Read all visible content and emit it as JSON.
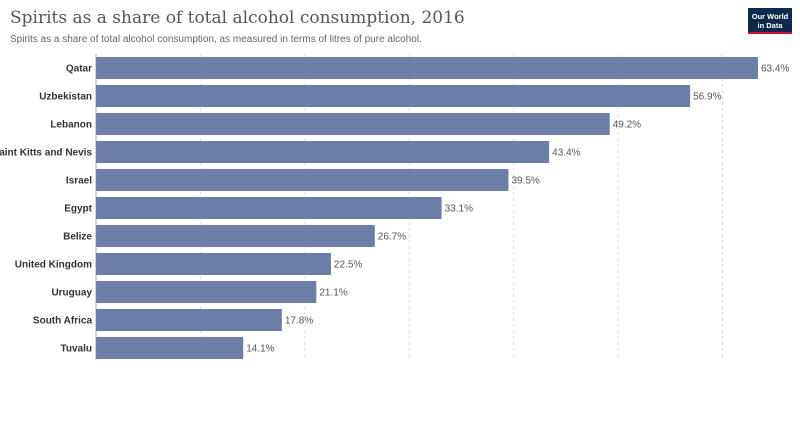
{
  "header": {
    "title": "Spirits as a share of total alcohol consumption, 2016",
    "subtitle": "Spirits as a share of total alcohol consumption, as measured in terms of litres of pure alcohol.",
    "logo_line1": "Our World",
    "logo_line2": "in Data"
  },
  "colors": {
    "bar": "#6b7ea8",
    "grid": "#dddddd",
    "axis": "#aaaaaa",
    "label": "#333333",
    "value": "#555555"
  },
  "chart_data": {
    "type": "bar",
    "orientation": "horizontal",
    "title": "Spirits as a share of total alcohol consumption, 2016",
    "subtitle": "Spirits as a share of total alcohol consumption, as measured in terms of litres of pure alcohol.",
    "categories": [
      "Qatar",
      "Uzbekistan",
      "Lebanon",
      "Saint Kitts and Nevis",
      "Israel",
      "Egypt",
      "Belize",
      "United Kingdom",
      "Uruguay",
      "South Africa",
      "Tuvalu"
    ],
    "values": [
      63.4,
      56.9,
      49.2,
      43.4,
      39.5,
      33.1,
      26.7,
      22.5,
      21.1,
      17.8,
      14.1
    ],
    "value_labels": [
      "63.4%",
      "56.9%",
      "49.2%",
      "43.4%",
      "39.5%",
      "33.1%",
      "26.7%",
      "22.5%",
      "21.1%",
      "17.8%",
      "14.1%"
    ],
    "unit": "%",
    "xlim": [
      0,
      63.4
    ],
    "grid": true,
    "grid_values": [
      10,
      20,
      30,
      40,
      50,
      60
    ],
    "legend": "none"
  }
}
